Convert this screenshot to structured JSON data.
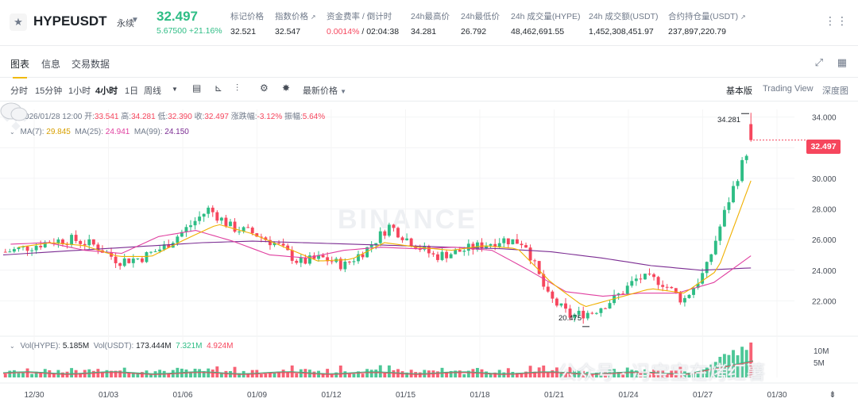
{
  "header": {
    "symbol": "HYPEUSDT",
    "contract_type": "永续",
    "last_price": "32.497",
    "change": "5.67500 +21.16%",
    "stats": [
      {
        "label": "标记价格",
        "value": "32.521"
      },
      {
        "label": "指数价格",
        "value": "32.547",
        "external": true
      },
      {
        "label": "资金费率 / 倒计时",
        "value_red": "0.0014%",
        "value": " / 02:04:38"
      },
      {
        "label": "24h最高价",
        "value": "34.281"
      },
      {
        "label": "24h最低价",
        "value": "26.792"
      },
      {
        "label": "24h 成交量(HYPE)",
        "value": "48,462,691.55"
      },
      {
        "label": "24h 成交额(USDT)",
        "value": "1,452,308,451.97"
      },
      {
        "label": "合约持仓量(USDT)",
        "value": "237,897,220.79",
        "external": true
      }
    ]
  },
  "tabs": [
    "图表",
    "信息",
    "交易数据"
  ],
  "toolbar": {
    "intervals": [
      "分时",
      "15分钟",
      "1小时",
      "4小时",
      "1日",
      "周线"
    ],
    "active_interval": "4小时",
    "price_type": "最新价格",
    "views": [
      "基本版",
      "Trading View",
      "深度图"
    ],
    "active_view": "基本版"
  },
  "legend": {
    "date": "2026/01/28 12:00",
    "open_label": "开:",
    "open": "33.541",
    "high_label": "高:",
    "high": "34.281",
    "low_label": "低:",
    "low": "32.390",
    "close_label": "收:",
    "close": "32.497",
    "chg_label": "涨跌幅:",
    "chg": "-3.12%",
    "amp_label": "振幅:",
    "amp": "5.64%",
    "ma7_label": "MA(7):",
    "ma7": "29.845",
    "ma25_label": "MA(25):",
    "ma25": "24.941",
    "ma99_label": "MA(99):",
    "ma99": "24.150",
    "vol_hype_label": "Vol(HYPE):",
    "vol_hype": "5.185M",
    "vol_usdt_label": "Vol(USDT):",
    "vol_usdt": "173.444M",
    "vol_ma_a": "7.321M",
    "vol_ma_b": "4.924M"
  },
  "watermark": "BINANCE",
  "overlay_text": "公众号 · 冯宝宝在烤红薯",
  "current_price_tag": "32.497",
  "annotations": {
    "high": "34.281",
    "low": "20.475"
  },
  "colors": {
    "up": "#2ebd85",
    "down": "#f6465d",
    "ma7": "#f0b000",
    "ma25": "#e040a0",
    "ma99": "#7b2c92",
    "accent": "#f0b90b"
  },
  "chart_data": {
    "type": "candlestick",
    "interval": "4h",
    "y_ticks": [
      "34.000",
      "32.000",
      "30.000",
      "28.000",
      "26.000",
      "24.000",
      "22.000"
    ],
    "y_range": [
      20.0,
      34.5
    ],
    "x_ticks": [
      "12/30",
      "01/03",
      "01/06",
      "01/09",
      "01/12",
      "01/15",
      "01/18",
      "01/21",
      "01/24",
      "01/27",
      "01/30"
    ],
    "volume_ticks": [
      "10M",
      "5M"
    ],
    "close_anchors": [
      25.2,
      25.5,
      25.9,
      26.0,
      25.6,
      24.6,
      24.8,
      25.5,
      26.7,
      28.0,
      26.8,
      26.4,
      25.7,
      24.5,
      24.8,
      24.3,
      25.4,
      26.9,
      25.8,
      24.9,
      25.2,
      25.6,
      26.0,
      25.8,
      22.3,
      21.0,
      21.3,
      22.2,
      23.5,
      23.3,
      22.0,
      24.0,
      28.5,
      32.5
    ],
    "highs_lows": [
      [
        34.281,
        32.39
      ]
    ],
    "ma7_anchors": [
      25.5,
      25.8,
      25.6,
      24.9,
      24.9,
      26.0,
      27.0,
      26.4,
      25.5,
      24.6,
      24.7,
      25.8,
      25.5,
      25.3,
      25.6,
      25.4,
      23.2,
      21.6,
      22.2,
      22.8,
      22.5,
      24.0,
      29.845
    ],
    "ma25_anchors": [
      25.7,
      25.8,
      25.3,
      25.1,
      26.2,
      26.6,
      25.9,
      25.0,
      24.8,
      25.3,
      25.5,
      25.4,
      25.5,
      25.3,
      24.0,
      22.6,
      22.3,
      22.5,
      22.5,
      23.2,
      24.941
    ],
    "ma99_anchors": [
      25.0,
      25.2,
      25.4,
      25.6,
      25.8,
      25.9,
      25.8,
      25.7,
      25.6,
      25.5,
      25.4,
      25.2,
      24.8,
      24.3,
      24.0,
      24.15
    ]
  }
}
